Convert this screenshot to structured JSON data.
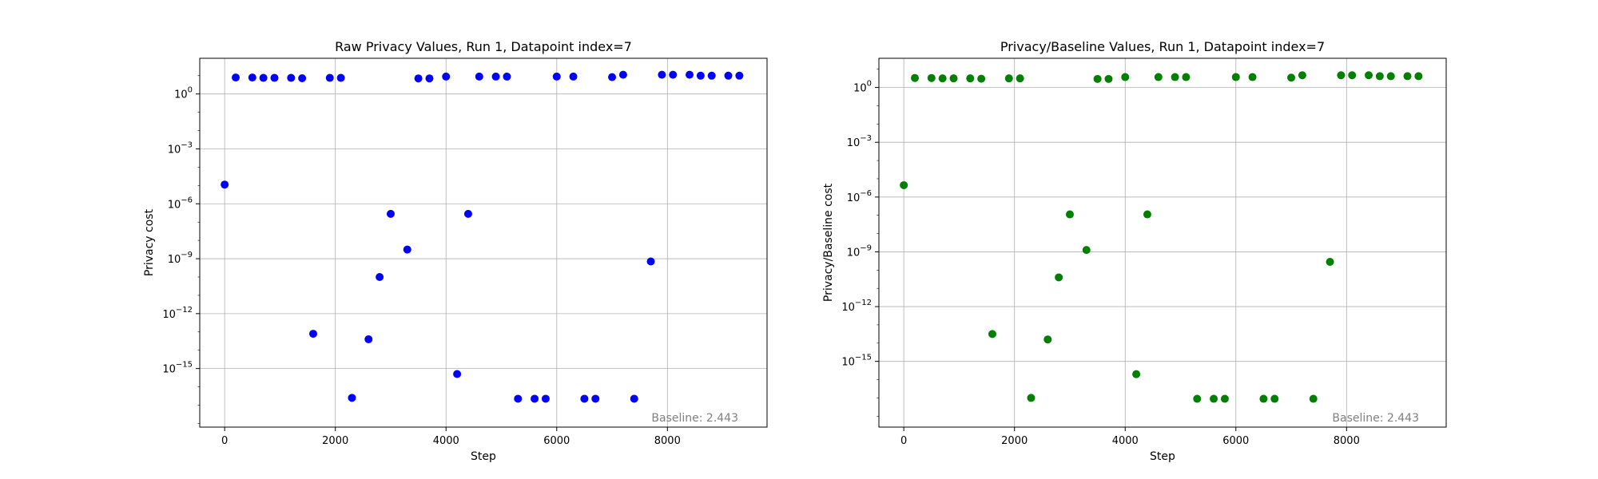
{
  "chart_data": [
    {
      "type": "scatter",
      "title": "Raw Privacy Values, Run 1, Datapoint index=7",
      "xlabel": "Step",
      "ylabel": "Privacy cost",
      "xlim": [
        -450,
        9800
      ],
      "ylim_log10": [
        -18.2,
        1.95
      ],
      "yscale": "log",
      "xticks": [
        0,
        2000,
        4000,
        6000,
        8000
      ],
      "yticks_exp": [
        0,
        -3,
        -6,
        -9,
        -12,
        -15
      ],
      "grid": true,
      "marker_color": "#0000ff",
      "annotation": "Baseline: 2.443",
      "series": [
        {
          "x": [
            0,
            200,
            500,
            700,
            900,
            1200,
            1400,
            1600,
            1900,
            2100,
            2300,
            2600,
            2800,
            3000,
            3300,
            3500,
            3700,
            4000,
            4200,
            4400,
            4600,
            4900,
            5100,
            5300,
            5600,
            5800,
            6000,
            6300,
            6500,
            6700,
            7000,
            7200,
            7400,
            7700,
            7900,
            8100,
            8400,
            8600,
            8800,
            9100,
            9300
          ],
          "y_log10": [
            -4.95,
            0.9,
            0.9,
            0.88,
            0.88,
            0.88,
            0.86,
            -13.1,
            0.88,
            0.88,
            -16.6,
            -13.4,
            -10.0,
            -6.55,
            -8.5,
            0.85,
            0.85,
            0.95,
            -15.3,
            -6.55,
            0.95,
            0.95,
            0.95,
            -16.65,
            -16.65,
            -16.65,
            0.95,
            0.95,
            -16.65,
            -16.65,
            0.92,
            1.05,
            -16.65,
            -9.15,
            1.05,
            1.05,
            1.05,
            1.0,
            1.0,
            1.0,
            1.0
          ]
        }
      ]
    },
    {
      "type": "scatter",
      "title": "Privacy/Baseline Values, Run 1, Datapoint index=7",
      "xlabel": "Step",
      "ylabel": "Privacy/Baseline cost",
      "xlim": [
        -450,
        9800
      ],
      "ylim_log10": [
        -18.6,
        1.6
      ],
      "yscale": "log",
      "xticks": [
        0,
        2000,
        4000,
        6000,
        8000
      ],
      "yticks_exp": [
        0,
        -3,
        -6,
        -9,
        -12,
        -15
      ],
      "grid": true,
      "marker_color": "#008000",
      "annotation": "Baseline: 2.443",
      "series": [
        {
          "x": [
            0,
            200,
            500,
            700,
            900,
            1200,
            1400,
            1600,
            1900,
            2100,
            2300,
            2600,
            2800,
            3000,
            3300,
            3500,
            3700,
            4000,
            4200,
            4400,
            4600,
            4900,
            5100,
            5300,
            5600,
            5800,
            6000,
            6300,
            6500,
            6700,
            7000,
            7200,
            7400,
            7700,
            7900,
            8100,
            8400,
            8600,
            8800,
            9100,
            9300
          ],
          "y_log10": [
            -5.35,
            0.52,
            0.52,
            0.5,
            0.5,
            0.5,
            0.48,
            -13.5,
            0.5,
            0.5,
            -17.0,
            -13.8,
            -10.4,
            -6.95,
            -8.9,
            0.47,
            0.47,
            0.57,
            -15.7,
            -6.95,
            0.57,
            0.57,
            0.57,
            -17.05,
            -17.05,
            -17.05,
            0.57,
            0.57,
            -17.05,
            -17.05,
            0.54,
            0.67,
            -17.05,
            -9.55,
            0.67,
            0.67,
            0.67,
            0.62,
            0.62,
            0.62,
            0.62
          ]
        }
      ]
    }
  ]
}
